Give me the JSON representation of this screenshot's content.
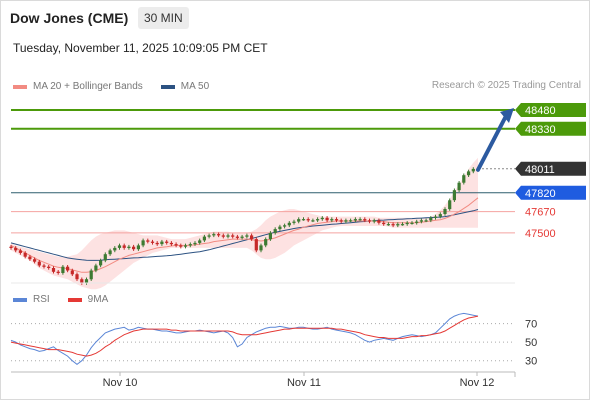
{
  "header": {
    "title": "Dow Jones (CME)",
    "timeframe": "30 MIN",
    "datetime": "Tuesday, November 11, 2025 10:09:05 PM CET"
  },
  "legend": [
    {
      "label": "MA 20 + Bollinger Bands",
      "color": "#f28b82"
    },
    {
      "label": "MA 50",
      "color": "#2c5282"
    }
  ],
  "credit": "Research © 2025 Trading Central",
  "rsi_legend": [
    {
      "label": "RSI",
      "color": "#5b86d6"
    },
    {
      "label": "9MA",
      "color": "#e53935"
    }
  ],
  "colors": {
    "green": "#4c9a0a",
    "red": "#e53935",
    "blue": "#1f5ce0",
    "dark": "#333333",
    "teal": "#2e5e6e",
    "arrow": "#2c5aa0",
    "band": "#fde2e2"
  },
  "chart_data": [
    {
      "type": "candlestick",
      "y_range": [
        47100,
        48560
      ],
      "x_labels": [
        "Nov 10",
        "Nov 11",
        "Nov 12"
      ],
      "levels": [
        {
          "value": 48480,
          "label": "48480",
          "style": "resistance",
          "color": "#4c9a0a"
        },
        {
          "value": 48330,
          "label": "48330",
          "style": "resistance",
          "color": "#4c9a0a"
        },
        {
          "value": 48011,
          "label": "48011",
          "style": "last-price",
          "color": "#333333"
        },
        {
          "value": 47820,
          "label": "47820",
          "style": "pivot",
          "color": "#1f5ce0"
        },
        {
          "value": 47670,
          "label": "47670",
          "style": "support",
          "color": "#e53935"
        },
        {
          "value": 47500,
          "label": "47500",
          "style": "support",
          "color": "#e53935"
        }
      ],
      "close": [
        47380,
        47360,
        47340,
        47310,
        47290,
        47270,
        47240,
        47230,
        47220,
        47190,
        47180,
        47230,
        47200,
        47170,
        47130,
        47100,
        47130,
        47200,
        47240,
        47280,
        47330,
        47360,
        47380,
        47400,
        47380,
        47390,
        47370,
        47400,
        47440,
        47430,
        47420,
        47410,
        47430,
        47420,
        47410,
        47400,
        47390,
        47400,
        47410,
        47420,
        47440,
        47470,
        47480,
        47490,
        47480,
        47470,
        47480,
        47470,
        47460,
        47470,
        47480,
        47450,
        47360,
        47400,
        47450,
        47500,
        47530,
        47550,
        47560,
        47580,
        47590,
        47610,
        47610,
        47600,
        47600,
        47610,
        47620,
        47600,
        47610,
        47600,
        47590,
        47600,
        47600,
        47610,
        47610,
        47600,
        47590,
        47600,
        47580,
        47570,
        47570,
        47560,
        47570,
        47570,
        47580,
        47580,
        47590,
        47600,
        47600,
        47620,
        47630,
        47650,
        47690,
        47760,
        47840,
        47900,
        47960,
        47990,
        48010,
        48010
      ],
      "ma20": [
        47400,
        47380,
        47360,
        47340,
        47320,
        47300,
        47280,
        47265,
        47250,
        47235,
        47225,
        47220,
        47215,
        47205,
        47195,
        47185,
        47185,
        47190,
        47200,
        47215,
        47230,
        47250,
        47270,
        47290,
        47305,
        47320,
        47330,
        47340,
        47350,
        47360,
        47370,
        47380,
        47385,
        47390,
        47395,
        47400,
        47400,
        47400,
        47400,
        47405,
        47410,
        47415,
        47420,
        47430,
        47435,
        47440,
        47445,
        47450,
        47450,
        47450,
        47450,
        47445,
        47440,
        47435,
        47440,
        47450,
        47460,
        47475,
        47490,
        47505,
        47520,
        47530,
        47545,
        47555,
        47565,
        47575,
        47580,
        47585,
        47590,
        47595,
        47595,
        47595,
        47595,
        47595,
        47595,
        47595,
        47595,
        47595,
        47590,
        47590,
        47585,
        47580,
        47580,
        47580,
        47580,
        47580,
        47580,
        47585,
        47590,
        47595,
        47600,
        47605,
        47615,
        47630,
        47650,
        47670,
        47695,
        47720,
        47750,
        47780
      ],
      "bb_upper": [
        47420,
        47400,
        47390,
        47380,
        47370,
        47360,
        47350,
        47340,
        47330,
        47320,
        47310,
        47310,
        47310,
        47320,
        47330,
        47360,
        47400,
        47440,
        47470,
        47490,
        47500,
        47510,
        47520,
        47520,
        47520,
        47510,
        47500,
        47490,
        47480,
        47480,
        47480,
        47480,
        47470,
        47460,
        47450,
        47450,
        47450,
        47450,
        47460,
        47470,
        47480,
        47490,
        47500,
        47510,
        47510,
        47510,
        47510,
        47500,
        47500,
        47500,
        47500,
        47510,
        47530,
        47560,
        47600,
        47630,
        47650,
        47670,
        47680,
        47690,
        47690,
        47680,
        47670,
        47660,
        47650,
        47640,
        47630,
        47630,
        47630,
        47630,
        47630,
        47630,
        47630,
        47630,
        47630,
        47630,
        47630,
        47630,
        47620,
        47620,
        47620,
        47620,
        47620,
        47620,
        47620,
        47620,
        47620,
        47620,
        47620,
        47630,
        47650,
        47680,
        47720,
        47770,
        47830,
        47890,
        47950,
        48010,
        48060,
        48100
      ],
      "bb_lower": [
        47360,
        47340,
        47320,
        47300,
        47280,
        47250,
        47220,
        47200,
        47180,
        47160,
        47150,
        47140,
        47130,
        47110,
        47090,
        47070,
        47060,
        47050,
        47050,
        47060,
        47080,
        47110,
        47140,
        47170,
        47200,
        47230,
        47260,
        47280,
        47300,
        47320,
        47340,
        47350,
        47360,
        47370,
        47380,
        47380,
        47380,
        47380,
        47380,
        47380,
        47380,
        47380,
        47380,
        47380,
        47380,
        47380,
        47380,
        47380,
        47380,
        47380,
        47380,
        47360,
        47330,
        47300,
        47290,
        47290,
        47300,
        47320,
        47340,
        47370,
        47400,
        47420,
        47440,
        47460,
        47480,
        47500,
        47520,
        47530,
        47540,
        47550,
        47555,
        47555,
        47555,
        47555,
        47555,
        47555,
        47555,
        47555,
        47555,
        47555,
        47550,
        47540,
        47540,
        47540,
        47540,
        47540,
        47540,
        47540,
        47540,
        47540,
        47540,
        47540,
        47540,
        47540,
        47540,
        47540,
        47540,
        47540,
        47540,
        47540
      ],
      "ma50": [
        47420,
        47410,
        47400,
        47390,
        47380,
        47370,
        47360,
        47350,
        47340,
        47330,
        47320,
        47310,
        47300,
        47295,
        47290,
        47285,
        47282,
        47280,
        47280,
        47282,
        47285,
        47288,
        47290,
        47292,
        47295,
        47297,
        47300,
        47302,
        47305,
        47307,
        47310,
        47312,
        47315,
        47317,
        47320,
        47325,
        47330,
        47335,
        47340,
        47345,
        47350,
        47357,
        47365,
        47375,
        47385,
        47395,
        47405,
        47415,
        47425,
        47435,
        47445,
        47455,
        47465,
        47475,
        47485,
        47495,
        47505,
        47512,
        47520,
        47527,
        47535,
        47540,
        47545,
        47550,
        47555,
        47558,
        47561,
        47565,
        47568,
        47571,
        47575,
        47578,
        47581,
        47585,
        47588,
        47591,
        47595,
        47597,
        47600,
        47602,
        47604,
        47606,
        47608,
        47610,
        47612,
        47614,
        47616,
        47618,
        47620,
        47622,
        47624,
        47626,
        47630,
        47636,
        47644,
        47652,
        47660,
        47668,
        47676,
        47686
      ]
    },
    {
      "type": "line",
      "y_range": [
        20,
        90
      ],
      "y_ticks": [
        70,
        50,
        30
      ],
      "series": [
        {
          "name": "RSI",
          "color": "#5b86d6",
          "values": [
            52,
            50,
            47,
            45,
            43,
            42,
            40,
            41,
            43,
            45,
            41,
            38,
            35,
            30,
            26,
            30,
            36,
            44,
            50,
            55,
            60,
            62,
            64,
            65,
            66,
            63,
            64,
            66,
            65,
            64,
            64,
            63,
            62,
            62,
            61,
            60,
            60,
            61,
            62,
            62,
            63,
            62,
            61,
            60,
            61,
            62,
            60,
            55,
            45,
            48,
            55,
            58,
            61,
            63,
            65,
            66,
            66,
            67,
            66,
            65,
            65,
            66,
            66,
            65,
            64,
            64,
            65,
            66,
            64,
            63,
            62,
            61,
            60,
            58,
            55,
            52,
            50,
            52,
            53,
            54,
            53,
            52,
            54,
            56,
            57,
            58,
            57,
            56,
            57,
            58,
            60,
            65,
            70,
            75,
            78,
            80,
            81,
            80,
            79,
            78
          ]
        },
        {
          "name": "9MA",
          "color": "#e53935",
          "values": [
            50,
            49,
            48,
            47,
            46,
            45,
            44,
            43,
            42,
            42,
            42,
            41,
            40,
            39,
            37,
            36,
            35,
            36,
            38,
            41,
            45,
            48,
            52,
            55,
            58,
            60,
            62,
            63,
            64,
            64,
            64,
            64,
            64,
            64,
            63,
            63,
            62,
            62,
            62,
            62,
            62,
            62,
            62,
            62,
            62,
            62,
            62,
            61,
            59,
            58,
            58,
            58,
            58,
            59,
            60,
            61,
            62,
            63,
            64,
            64,
            65,
            65,
            65,
            65,
            65,
            65,
            65,
            65,
            65,
            64,
            64,
            63,
            62,
            61,
            60,
            58,
            57,
            56,
            55,
            55,
            54,
            54,
            54,
            54,
            55,
            56,
            56,
            57,
            57,
            58,
            59,
            60,
            62,
            65,
            68,
            71,
            74,
            76,
            77,
            78
          ]
        }
      ]
    }
  ]
}
